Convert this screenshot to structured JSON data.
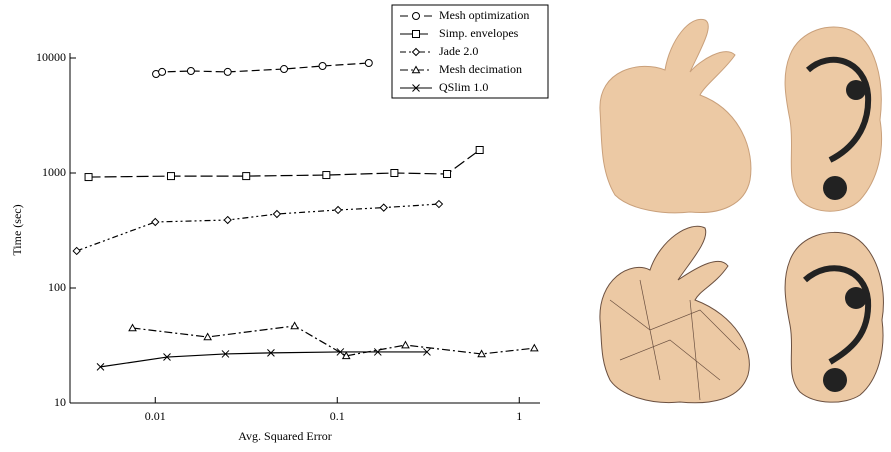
{
  "chart_data": {
    "type": "line",
    "x_scale": "log",
    "y_scale": "log",
    "xlabel": "Avg. Squared Error",
    "ylabel": "Time (sec)",
    "xlim": [
      0.0034,
      1.3
    ],
    "ylim": [
      10,
      10000
    ],
    "xticks": [
      0.01,
      0.1,
      1
    ],
    "yticks": [
      10,
      100,
      1000,
      10000
    ],
    "legend": "upper right",
    "color": "#000000",
    "series": [
      {
        "name": "Mesh optimization",
        "marker": "circle",
        "dash": "8,4",
        "x": [
          0.0101,
          0.0109,
          0.0157,
          0.025,
          0.051,
          0.083,
          0.149
        ],
        "values": [
          7260,
          7570,
          7710,
          7570,
          8020,
          8520,
          9050
        ]
      },
      {
        "name": "Simp. envelopes",
        "marker": "square",
        "dash": "12,4",
        "x": [
          0.0043,
          0.0122,
          0.0316,
          0.0871,
          0.206,
          0.401,
          0.606
        ],
        "values": [
          922,
          940,
          940,
          960,
          1000,
          980,
          1585
        ]
      },
      {
        "name": "Jade 2.0",
        "marker": "diamond",
        "dash": "6,3,2,3,2,3",
        "x": [
          0.0037,
          0.01,
          0.025,
          0.0466,
          0.101,
          0.18,
          0.362
        ],
        "values": [
          210,
          375,
          390,
          440,
          477,
          500,
          537
        ]
      },
      {
        "name": "Mesh decimation",
        "marker": "triangle",
        "dash": "8,3,2,3",
        "x": [
          0.0075,
          0.0194,
          0.0583,
          0.112,
          0.237,
          0.621,
          1.21
        ],
        "values": [
          44.9,
          37.5,
          46.8,
          25.7,
          31.9,
          26.7,
          30
        ]
      },
      {
        "name": "QSlim 1.0",
        "marker": "x",
        "dash": "none",
        "x": [
          0.005,
          0.0116,
          0.0243,
          0.0432,
          0.104,
          0.167,
          0.311
        ],
        "values": [
          20.6,
          25.1,
          26.7,
          27.3,
          27.8,
          27.8,
          27.8
        ]
      }
    ]
  }
}
